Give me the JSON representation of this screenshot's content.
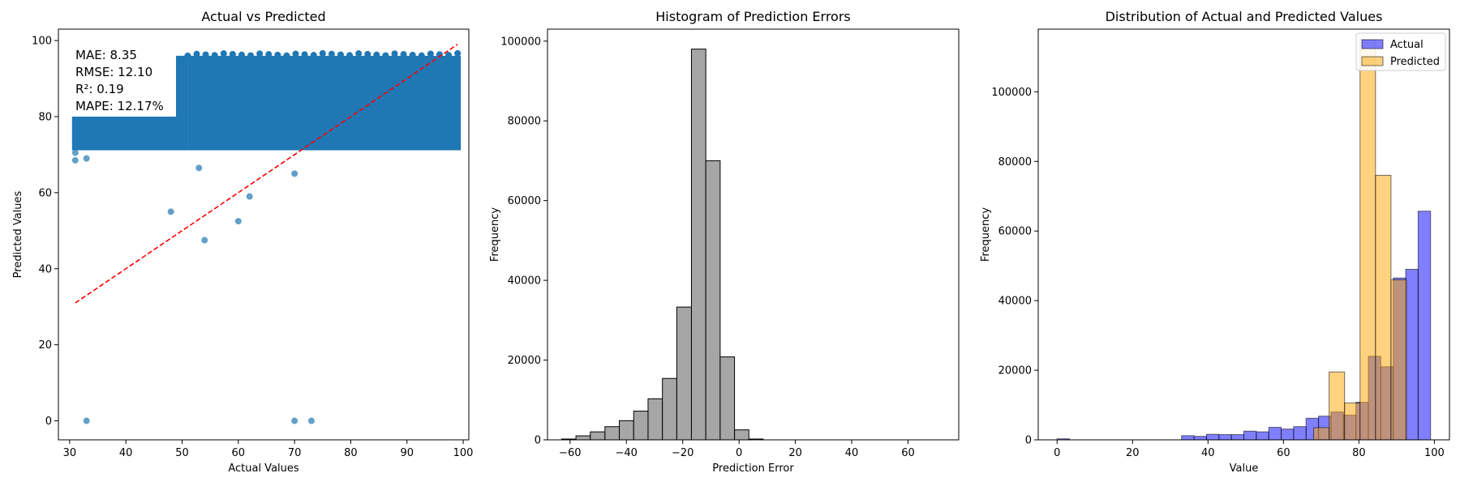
{
  "chart_data": [
    {
      "type": "scatter",
      "title": "Actual vs Predicted",
      "xlabel": "Actual Values",
      "ylabel": "Predicted Values",
      "xlim": [
        28,
        101
      ],
      "ylim": [
        -5,
        103
      ],
      "xticks": [
        30,
        40,
        50,
        60,
        70,
        80,
        90,
        100
      ],
      "yticks": [
        0,
        20,
        40,
        60,
        80,
        100
      ],
      "point_color": "#1f77b4",
      "dense_region": {
        "x": [
          31,
          99
        ],
        "y": [
          72,
          97
        ],
        "top_edge_x": [
          31,
          51
        ],
        "top_edge_y": [
          95,
          97
        ]
      },
      "outlier_points": [
        {
          "x": 31,
          "y": 68.5
        },
        {
          "x": 31,
          "y": 70.5
        },
        {
          "x": 33,
          "y": 69
        },
        {
          "x": 33,
          "y": 0
        },
        {
          "x": 48,
          "y": 55
        },
        {
          "x": 53,
          "y": 66.5
        },
        {
          "x": 54,
          "y": 47.5
        },
        {
          "x": 60,
          "y": 52.5
        },
        {
          "x": 62,
          "y": 59
        },
        {
          "x": 70,
          "y": 65
        },
        {
          "x": 70,
          "y": 0
        },
        {
          "x": 73,
          "y": 0
        }
      ],
      "reference_line": {
        "x": [
          31,
          99
        ],
        "y": [
          31,
          99
        ],
        "color": "#ff0000",
        "style": "dashed"
      },
      "metrics": [
        "MAE: 8.35",
        "RMSE: 12.10",
        "R²: 0.19",
        "MAPE: 12.17%"
      ]
    },
    {
      "type": "bar",
      "title": "Histogram of Prediction Errors",
      "xlabel": "Prediction Error",
      "ylabel": "Frequency",
      "xlim": [
        -68,
        78
      ],
      "ylim": [
        0,
        103000
      ],
      "xticks": [
        -60,
        -40,
        -20,
        0,
        20,
        40,
        60
      ],
      "yticks": [
        0,
        20000,
        40000,
        60000,
        80000,
        100000
      ],
      "bar_color": "#a6a6a6",
      "bin_edges": [
        -63,
        -57.9,
        -52.8,
        -47.6,
        -42.5,
        -37.4,
        -32.3,
        -27.2,
        -22.1,
        -16.9,
        -11.8,
        -6.7,
        -1.6,
        3.5,
        8.6,
        13.8,
        18.9,
        24,
        29.1,
        34.2,
        39.3,
        44.5,
        49.6,
        54.7,
        59.8,
        64.9,
        70
      ],
      "values": [
        200,
        1000,
        2000,
        3300,
        4800,
        7200,
        10300,
        15400,
        33300,
        98000,
        70000,
        20800,
        2500,
        200,
        0,
        0,
        0,
        0,
        0,
        0,
        0,
        0,
        0,
        0,
        0,
        0
      ]
    },
    {
      "type": "bar",
      "title": "Distribution of Actual and Predicted Values",
      "xlabel": "Value",
      "ylabel": "Frequency",
      "xlim": [
        -5,
        104
      ],
      "ylim": [
        0,
        118000
      ],
      "xticks": [
        0,
        20,
        40,
        60,
        80,
        100
      ],
      "yticks": [
        0,
        20000,
        40000,
        60000,
        80000,
        100000
      ],
      "legend_position": "top-right",
      "series": [
        {
          "name": "Actual",
          "color": "#0000ff",
          "bin_edges": [
            0,
            3.3,
            6.6,
            9.9,
            13.2,
            16.5,
            19.8,
            23.1,
            26.4,
            29.7,
            33,
            36.3,
            39.6,
            42.9,
            46.2,
            49.5,
            52.8,
            56.1,
            59.4,
            62.7,
            66,
            69.3,
            72.6,
            75.9,
            79.2,
            82.5,
            85.8,
            89.1,
            92.4,
            95.7,
            99
          ],
          "values": [
            300,
            0,
            0,
            0,
            0,
            0,
            0,
            0,
            0,
            0,
            1200,
            1000,
            1600,
            1500,
            1500,
            2500,
            2300,
            3600,
            3100,
            3800,
            6200,
            6800,
            8000,
            7100,
            10800,
            24000,
            21000,
            46500,
            49000,
            65700
          ]
        },
        {
          "name": "Predicted",
          "color": "#ffa500",
          "bin_edges": [
            68,
            72.1,
            76.2,
            80.3,
            84.4,
            88.5,
            92.6,
            96.7
          ],
          "values": [
            3500,
            19500,
            10600,
            115000,
            76000,
            46000,
            0
          ]
        }
      ]
    }
  ]
}
